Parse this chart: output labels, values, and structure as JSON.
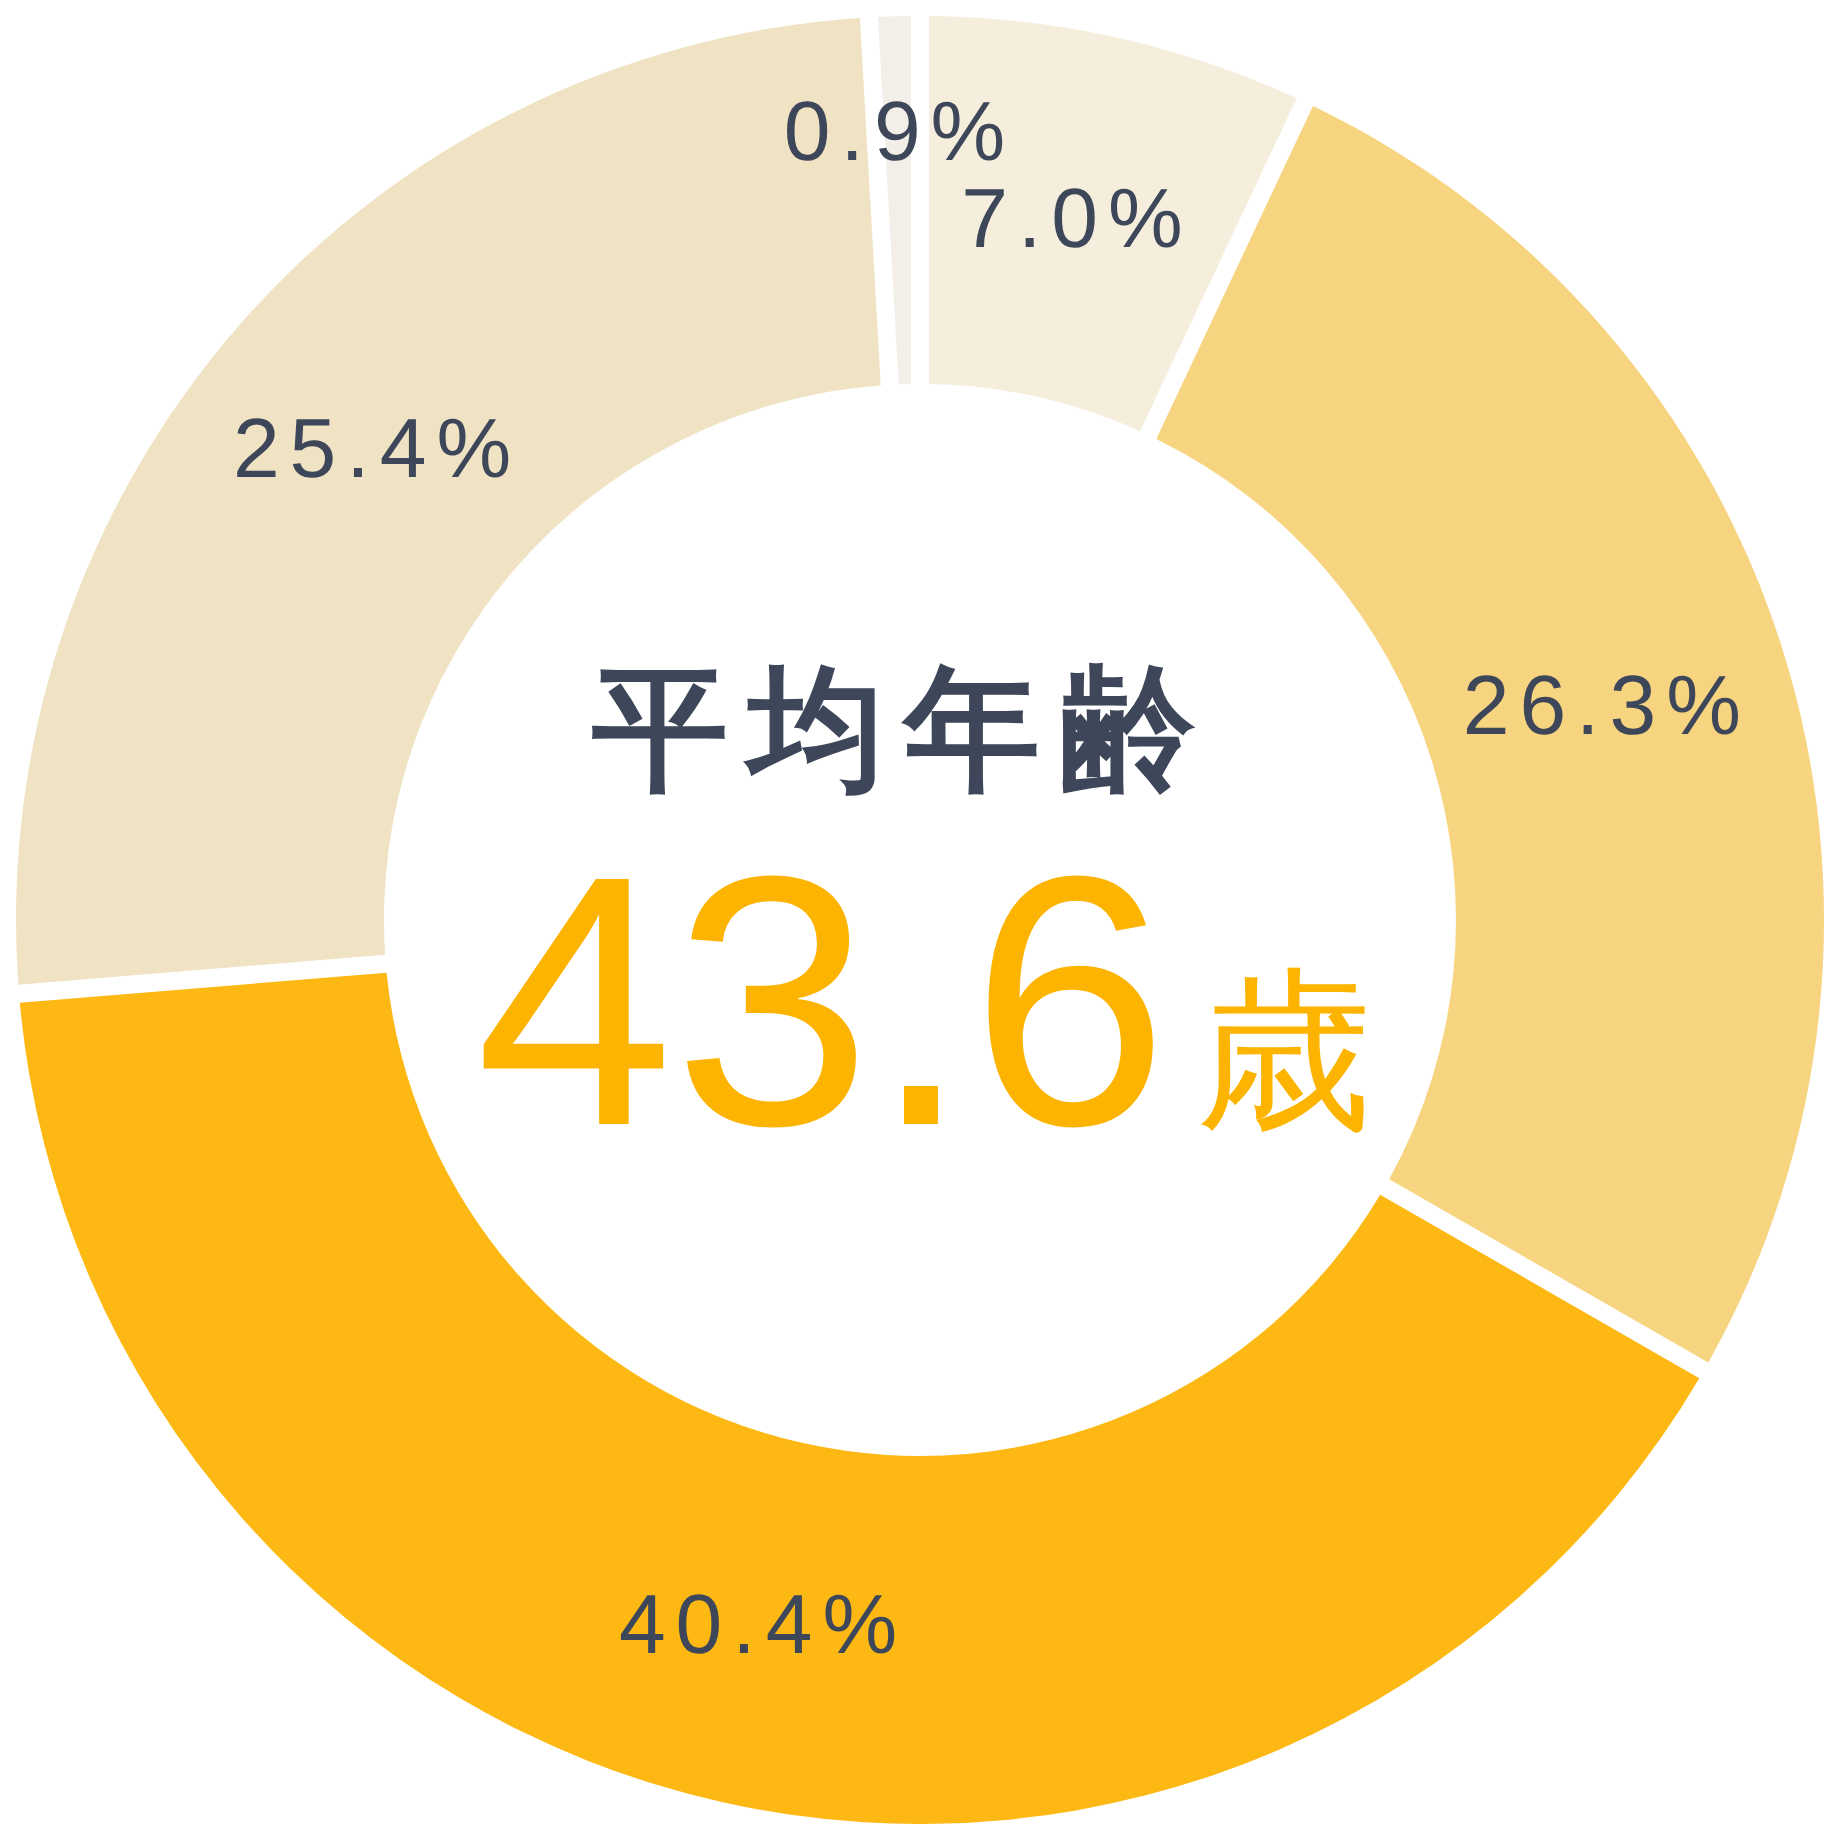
{
  "chart_data": {
    "type": "donut",
    "categories": [
      null,
      null,
      null,
      null,
      null
    ],
    "values": [
      7.0,
      26.3,
      40.4,
      25.4,
      0.9
    ],
    "colors": [
      "#f6eedd",
      "#f7d47f",
      "#fdb813",
      "#f0e3c3",
      "#f3efe8"
    ],
    "value_labels": [
      "7.0%",
      "26.3%",
      "40.4%",
      "25.4%",
      "0.9%"
    ],
    "annotations": [
      "平均年齢",
      "43.6歳"
    ]
  }
}
